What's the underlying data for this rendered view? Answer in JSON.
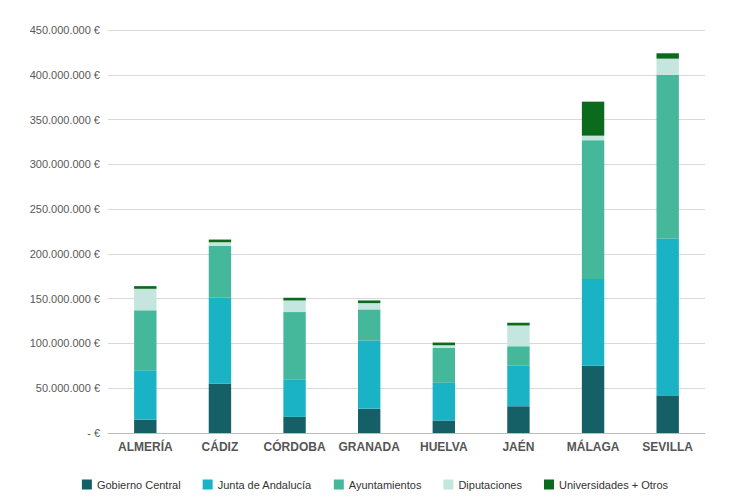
{
  "chart_data": {
    "type": "bar",
    "stacked": true,
    "grid": true,
    "legend": "bottom",
    "categories": [
      "ALMERÍA",
      "CÁDIZ",
      "CÓRDOBA",
      "GRANADA",
      "HUELVA",
      "JAÉN",
      "MÁLAGA",
      "SEVILLA"
    ],
    "series": [
      {
        "name": "Gobierno Central",
        "color": "#155f66",
        "values": [
          15000000,
          55000000,
          18000000,
          27000000,
          14000000,
          30000000,
          75000000,
          42000000
        ]
      },
      {
        "name": "Junta de Andalucía",
        "color": "#1ab3c6",
        "values": [
          55000000,
          96000000,
          42000000,
          76000000,
          42000000,
          45000000,
          97000000,
          175000000
        ]
      },
      {
        "name": "Ayuntamientos",
        "color": "#45b89c",
        "values": [
          67000000,
          58000000,
          75000000,
          35000000,
          39000000,
          22000000,
          155000000,
          183000000
        ]
      },
      {
        "name": "Diputaciones",
        "color": "#c4e6df",
        "values": [
          24000000,
          4000000,
          13000000,
          7000000,
          3000000,
          23000000,
          5000000,
          18000000
        ]
      },
      {
        "name": "Universidades + Otros",
        "color": "#0b6a1c",
        "values": [
          3000000,
          3000000,
          3000000,
          3000000,
          3000000,
          3000000,
          38000000,
          6000000
        ]
      }
    ],
    "ylim": [
      0,
      450000000
    ],
    "yticks": [
      {
        "value": 0,
        "label": "- €"
      },
      {
        "value": 50000000,
        "label": "50.000.000 €"
      },
      {
        "value": 100000000,
        "label": "100.000.000 €"
      },
      {
        "value": 150000000,
        "label": "150.000.000 €"
      },
      {
        "value": 200000000,
        "label": "200.000.000 €"
      },
      {
        "value": 250000000,
        "label": "250.000.000 €"
      },
      {
        "value": 300000000,
        "label": "300.000.000 €"
      },
      {
        "value": 350000000,
        "label": "350.000.000 €"
      },
      {
        "value": 400000000,
        "label": "400.000.000 €"
      },
      {
        "value": 450000000,
        "label": "450.000.000 €"
      }
    ]
  }
}
